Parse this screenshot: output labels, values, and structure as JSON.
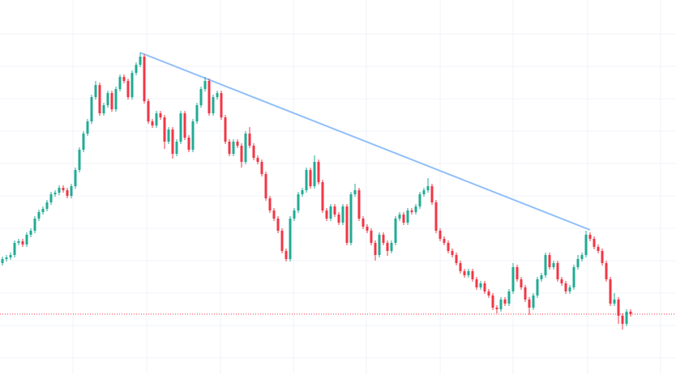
{
  "chart_data": {
    "type": "candlestick",
    "up_color": "#22ab94",
    "down_color": "#f23645",
    "grid": true,
    "xlim": [
      -0.6,
      166.2
    ],
    "xticks": [
      17.4,
      35.6,
      53.8,
      71.8,
      89.8,
      108,
      126,
      144.4,
      162.4
    ],
    "ylim": [
      0,
      462
    ],
    "yticks": [
      20,
      60,
      100,
      140,
      180,
      220,
      260,
      300,
      340,
      380,
      420
    ],
    "open": [
      137,
      142,
      144,
      147,
      162,
      164,
      160,
      172,
      177,
      192,
      200,
      204,
      212,
      222,
      224,
      230,
      227,
      220,
      232,
      252,
      277,
      297,
      312,
      342,
      357,
      322,
      332,
      347,
      327,
      352,
      367,
      362,
      342,
      372,
      382,
      392,
      337,
      312,
      307,
      322,
      317,
      287,
      302,
      272,
      287,
      322,
      292,
      277,
      312,
      332,
      352,
      362,
      322,
      342,
      347,
      317,
      287,
      272,
      287,
      282,
      262,
      297,
      282,
      267,
      262,
      247,
      217,
      202,
      192,
      177,
      152,
      142,
      192,
      202,
      222,
      227,
      252,
      232,
      262,
      237,
      202,
      192,
      207,
      197,
      187,
      207,
      162,
      222,
      227,
      192,
      182,
      177,
      162,
      147,
      172,
      162,
      152,
      162,
      192,
      197,
      187,
      202,
      200,
      207,
      222,
      227,
      232,
      212,
      177,
      167,
      162,
      152,
      147,
      137,
      127,
      122,
      127,
      117,
      107,
      112,
      102,
      97,
      82,
      80,
      92,
      87,
      102,
      132,
      117,
      107,
      92,
      82,
      97,
      117,
      122,
      147,
      132,
      137,
      117,
      112,
      102,
      107,
      132,
      142,
      147,
      172,
      167,
      157,
      152,
      137,
      117,
      87,
      92,
      72,
      62,
      77
    ],
    "high": [
      145,
      147,
      150,
      165,
      167,
      167,
      175,
      180,
      195,
      203,
      207,
      215,
      225,
      227,
      233,
      233,
      230,
      235,
      255,
      280,
      300,
      315,
      345,
      362,
      360,
      335,
      350,
      350,
      355,
      370,
      370,
      365,
      375,
      385,
      397,
      395,
      340,
      315,
      325,
      325,
      320,
      305,
      305,
      290,
      325,
      325,
      295,
      315,
      335,
      355,
      367,
      365,
      345,
      350,
      350,
      320,
      290,
      290,
      290,
      285,
      300,
      305,
      285,
      270,
      265,
      250,
      220,
      205,
      195,
      180,
      155,
      195,
      205,
      225,
      230,
      255,
      255,
      270,
      265,
      240,
      205,
      210,
      210,
      200,
      210,
      210,
      225,
      235,
      230,
      195,
      185,
      180,
      165,
      175,
      175,
      165,
      165,
      195,
      200,
      200,
      205,
      205,
      210,
      225,
      230,
      242,
      235,
      215,
      180,
      170,
      165,
      155,
      150,
      140,
      130,
      130,
      130,
      120,
      115,
      115,
      105,
      100,
      85,
      95,
      95,
      105,
      137,
      135,
      120,
      110,
      95,
      100,
      120,
      125,
      150,
      150,
      140,
      140,
      120,
      115,
      110,
      135,
      147,
      150,
      177,
      175,
      170,
      160,
      155,
      140,
      120,
      100,
      95,
      75,
      80,
      80
    ],
    "low": [
      134,
      139,
      141,
      144,
      159,
      157,
      157,
      169,
      174,
      189,
      197,
      201,
      209,
      219,
      221,
      224,
      217,
      217,
      229,
      249,
      274,
      294,
      309,
      339,
      319,
      319,
      329,
      324,
      324,
      349,
      359,
      339,
      339,
      369,
      379,
      334,
      309,
      304,
      304,
      314,
      278,
      284,
      266,
      269,
      284,
      289,
      274,
      274,
      309,
      329,
      349,
      319,
      319,
      339,
      314,
      284,
      269,
      269,
      279,
      255,
      259,
      279,
      264,
      259,
      244,
      214,
      199,
      189,
      174,
      149,
      139,
      139,
      189,
      199,
      219,
      224,
      229,
      229,
      234,
      199,
      189,
      189,
      194,
      184,
      184,
      159,
      159,
      219,
      189,
      179,
      174,
      159,
      140,
      144,
      159,
      146,
      149,
      159,
      189,
      184,
      184,
      197,
      197,
      204,
      219,
      224,
      209,
      174,
      164,
      159,
      149,
      144,
      134,
      124,
      119,
      119,
      114,
      104,
      104,
      99,
      94,
      79,
      75,
      77,
      84,
      84,
      99,
      114,
      104,
      89,
      73,
      79,
      94,
      114,
      119,
      129,
      129,
      114,
      109,
      99,
      99,
      104,
      129,
      139,
      144,
      164,
      154,
      149,
      134,
      114,
      84,
      84,
      62,
      55,
      59,
      71
    ],
    "close": [
      142,
      144,
      147,
      162,
      164,
      160,
      172,
      177,
      192,
      200,
      204,
      212,
      222,
      224,
      230,
      227,
      220,
      232,
      252,
      277,
      297,
      312,
      342,
      357,
      322,
      332,
      347,
      327,
      352,
      367,
      362,
      342,
      372,
      382,
      392,
      337,
      312,
      307,
      322,
      317,
      287,
      302,
      272,
      287,
      322,
      292,
      277,
      312,
      332,
      352,
      362,
      322,
      342,
      347,
      317,
      287,
      272,
      287,
      282,
      262,
      297,
      282,
      267,
      262,
      247,
      217,
      202,
      192,
      177,
      152,
      142,
      192,
      202,
      222,
      227,
      252,
      232,
      262,
      237,
      202,
      192,
      207,
      197,
      187,
      207,
      162,
      222,
      227,
      192,
      182,
      177,
      162,
      147,
      172,
      162,
      152,
      162,
      192,
      197,
      187,
      202,
      200,
      207,
      222,
      227,
      232,
      212,
      177,
      167,
      162,
      152,
      147,
      137,
      127,
      122,
      127,
      117,
      107,
      112,
      102,
      97,
      82,
      80,
      92,
      87,
      102,
      132,
      117,
      107,
      92,
      82,
      97,
      117,
      122,
      147,
      132,
      137,
      117,
      112,
      102,
      107,
      132,
      142,
      147,
      172,
      167,
      157,
      152,
      137,
      117,
      87,
      92,
      72,
      62,
      77,
      74
    ],
    "trendline": {
      "x": [
        34,
        145
      ],
      "y": [
        397,
        178
      ],
      "color": "#90bff9"
    },
    "price_line_color": "#f23645"
  }
}
